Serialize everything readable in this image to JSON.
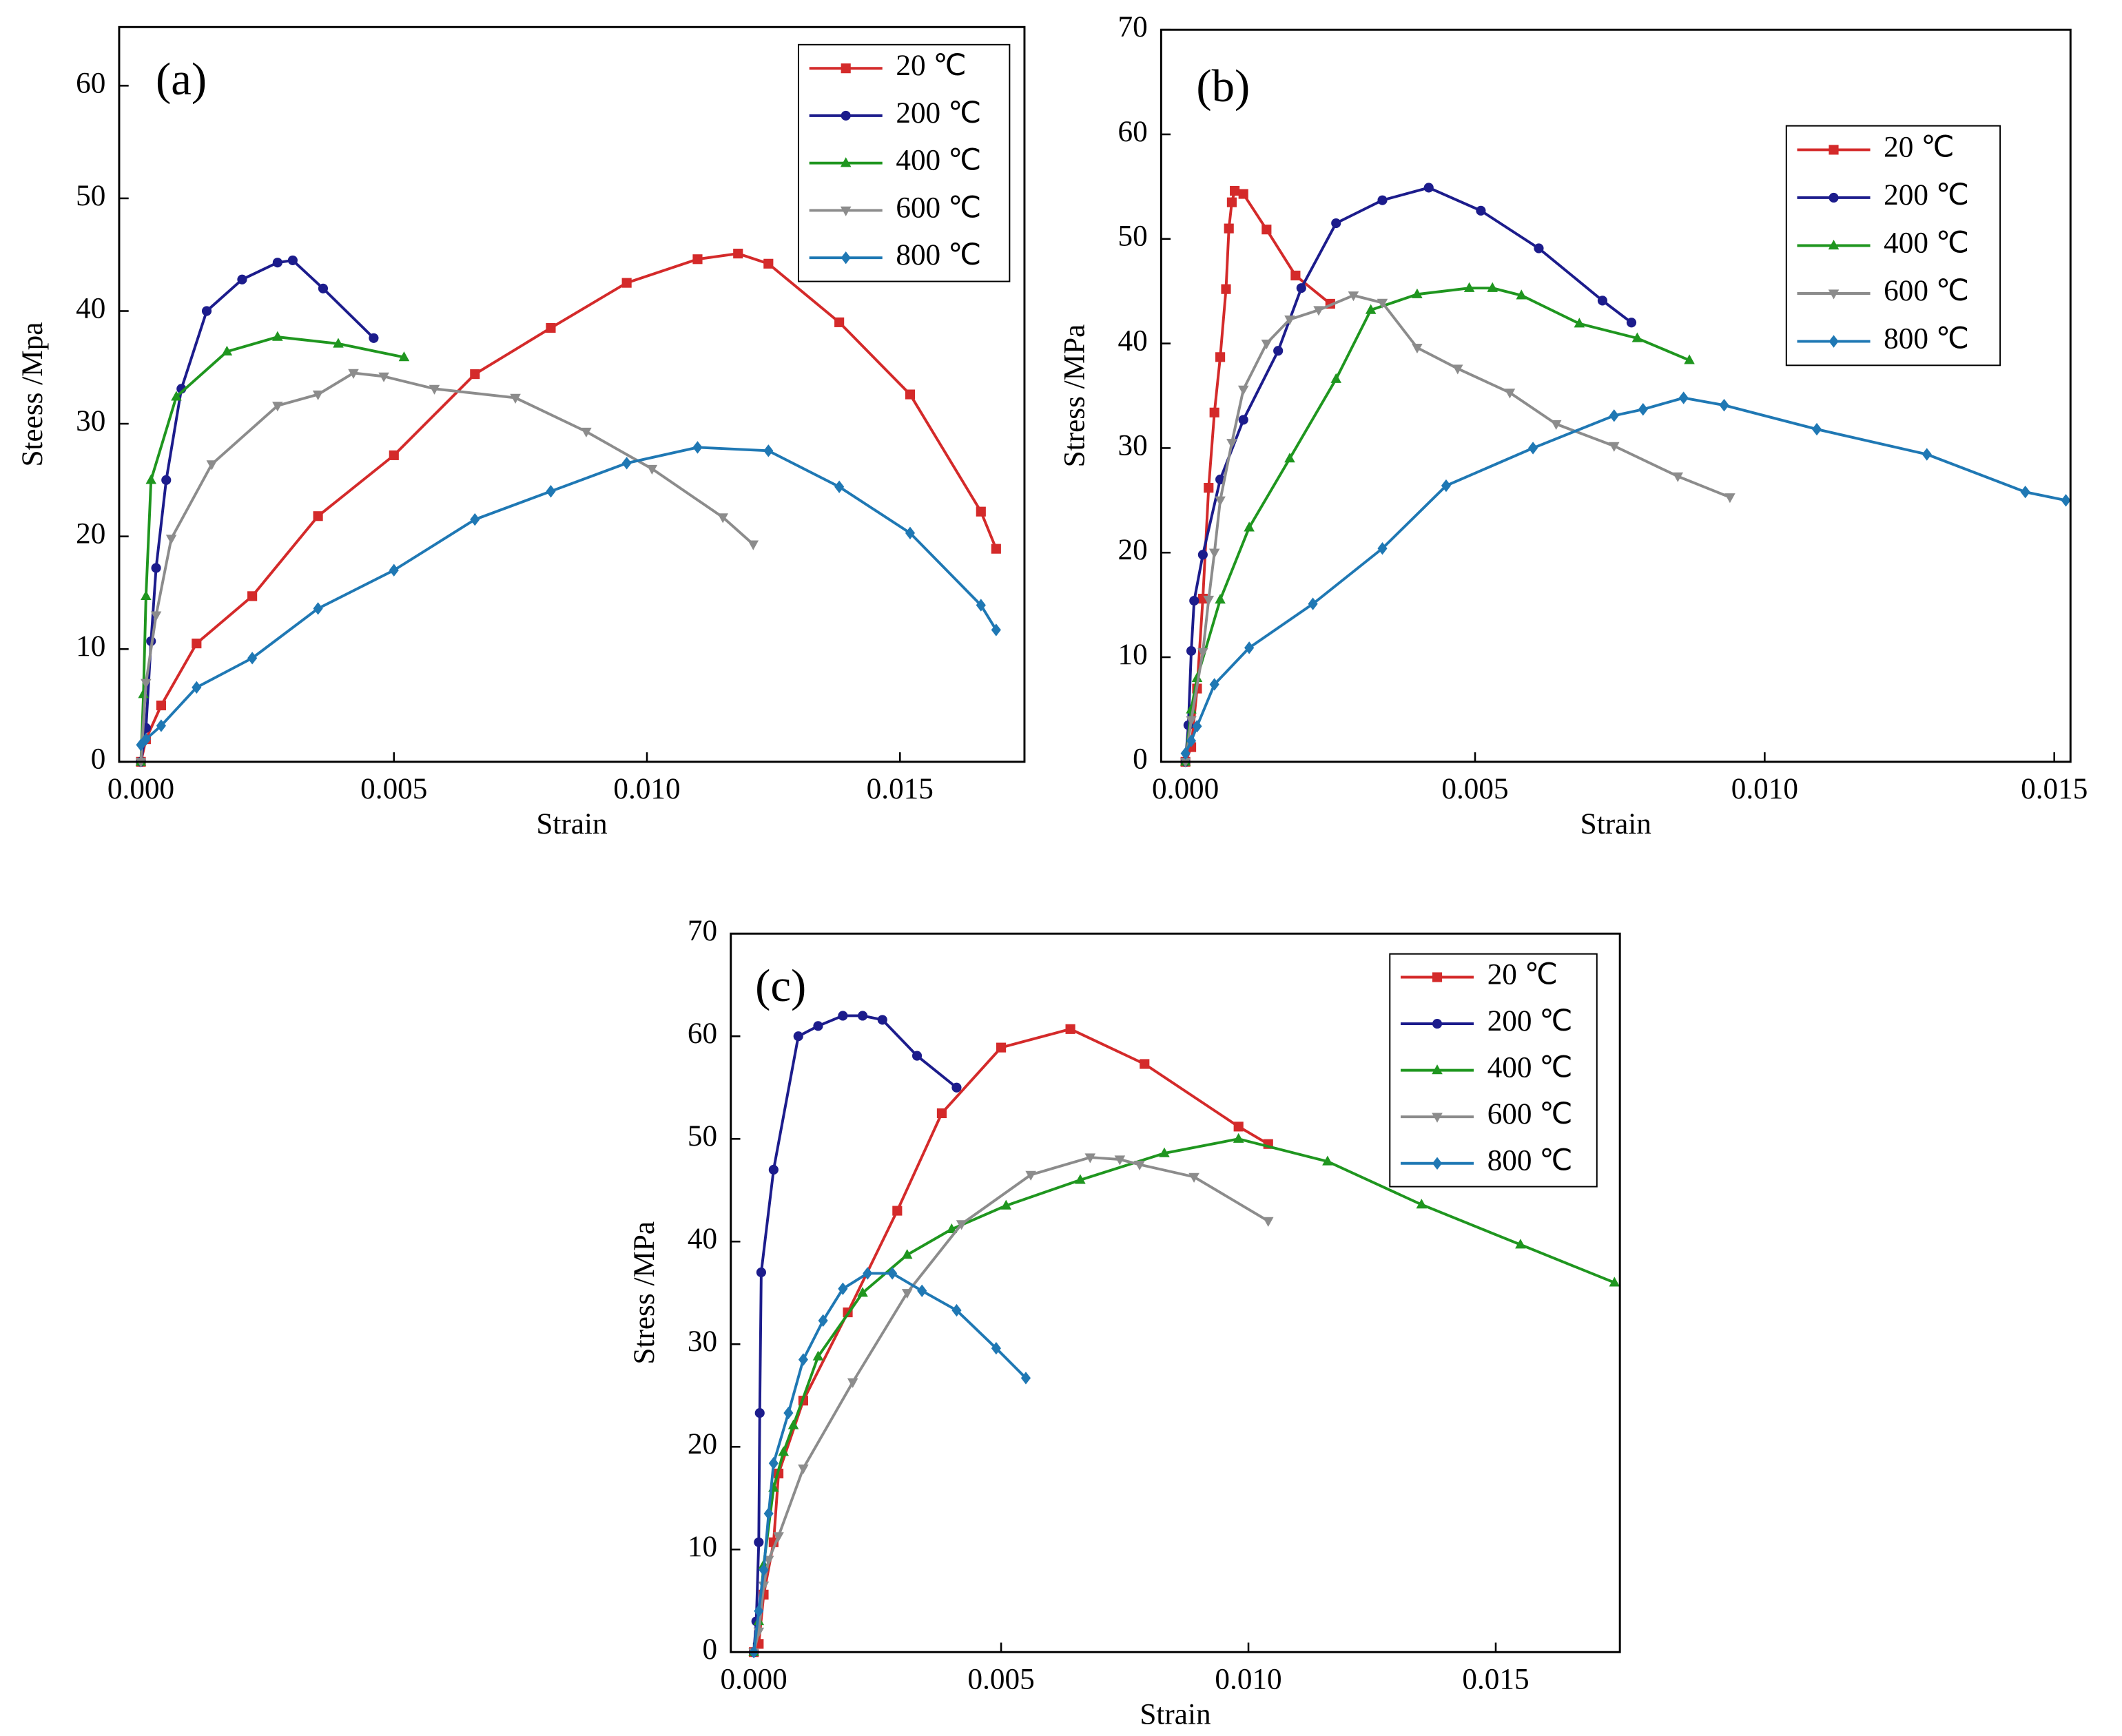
{
  "chart_data": [
    {
      "type": "line",
      "label": "(a)",
      "xlabel": "Strain",
      "ylabel": "Steess /Mpa",
      "xlim": [
        -0.00043,
        0.01746
      ],
      "ylim": [
        0,
        65.2
      ],
      "xticks": [
        {
          "value": 0,
          "label": "0.000"
        },
        {
          "value": 0.005,
          "label": "0.005"
        },
        {
          "value": 0.01,
          "label": "0.010"
        },
        {
          "value": 0.015,
          "label": "0.015"
        }
      ],
      "yticks": [
        0,
        10,
        20,
        30,
        40,
        50,
        60
      ],
      "legend": "upper right",
      "series": [
        {
          "name": "20 ℃",
          "color": "#d42a2a",
          "marker": "square",
          "x": [
            0,
            0.0001,
            0.0004,
            0.0011,
            0.0022,
            0.0035,
            0.005,
            0.0066,
            0.0081,
            0.0096,
            0.011,
            0.0118,
            0.0124,
            0.0138,
            0.0152,
            0.0166,
            0.0169
          ],
          "values": [
            0,
            2,
            5,
            10.5,
            14.7,
            21.8,
            27.2,
            34.4,
            38.5,
            42.5,
            44.6,
            45.1,
            44.2,
            39,
            32.6,
            22.2,
            18.9
          ]
        },
        {
          "name": "200 ℃",
          "color": "#1c1c8c",
          "marker": "circle",
          "x": [
            0,
            0.0001,
            0.0002,
            0.0003,
            0.0005,
            0.0008,
            0.0013,
            0.002,
            0.0027,
            0.003,
            0.0036,
            0.0046
          ],
          "values": [
            0,
            3,
            10.7,
            17.2,
            25,
            33.1,
            40,
            42.8,
            44.3,
            44.5,
            42,
            37.6
          ]
        },
        {
          "name": "400 ℃",
          "color": "#1f961f",
          "marker": "triangle-up",
          "x": [
            0,
            5e-05,
            0.0001,
            0.0002,
            0.0007,
            0.0017,
            0.0027,
            0.0039,
            0.0052
          ],
          "values": [
            0,
            6,
            14.7,
            25,
            32.4,
            36.4,
            37.7,
            37.1,
            35.9
          ]
        },
        {
          "name": "600 ℃",
          "color": "#8c8c8c",
          "marker": "triangle-down",
          "x": [
            0,
            0.0001,
            0.0003,
            0.0006,
            0.0014,
            0.0027,
            0.0035,
            0.0042,
            0.0048,
            0.0058,
            0.0074,
            0.0088,
            0.0101,
            0.0115,
            0.0121
          ],
          "values": [
            0,
            7,
            13,
            19.8,
            26.4,
            31.6,
            32.6,
            34.5,
            34.2,
            33.1,
            32.3,
            29.3,
            26,
            21.7,
            19.3
          ]
        },
        {
          "name": "800 ℃",
          "color": "#1f78b4",
          "marker": "diamond",
          "x": [
            0,
            0.0001,
            0.0004,
            0.0011,
            0.0022,
            0.0035,
            0.005,
            0.0066,
            0.0081,
            0.0096,
            0.011,
            0.0124,
            0.0138,
            0.0152,
            0.0166,
            0.0169
          ],
          "values": [
            1.5,
            2,
            3.2,
            6.6,
            9.2,
            13.6,
            17,
            21.5,
            24,
            26.5,
            27.9,
            27.6,
            24.4,
            20.3,
            13.9,
            11.7
          ]
        }
      ]
    },
    {
      "type": "line",
      "label": "(b)",
      "xlabel": "Strain",
      "ylabel": "Stress /MPa",
      "xlim": [
        -0.00042,
        0.01528
      ],
      "ylim": [
        0,
        70
      ],
      "xticks": [
        {
          "value": 0,
          "label": "0.000"
        },
        {
          "value": 0.005,
          "label": "0.005"
        },
        {
          "value": 0.01,
          "label": "0.010"
        },
        {
          "value": 0.015,
          "label": "0.015"
        }
      ],
      "yticks": [
        0,
        10,
        20,
        30,
        40,
        50,
        60,
        70
      ],
      "legend": "upper right",
      "series": [
        {
          "name": "20 ℃",
          "color": "#d42a2a",
          "marker": "square",
          "x": [
            0,
            0.0001,
            0.0002,
            0.0003,
            0.0004,
            0.0005,
            0.0006,
            0.0007,
            0.00075,
            0.0008,
            0.00085,
            0.001,
            0.0014,
            0.0019,
            0.0025
          ],
          "values": [
            0,
            1.4,
            7,
            15.6,
            26.2,
            33.4,
            38.7,
            45.2,
            51,
            53.5,
            54.6,
            54.3,
            50.9,
            46.5,
            43.8
          ]
        },
        {
          "name": "200 ℃",
          "color": "#1c1c8c",
          "marker": "circle",
          "x": [
            0,
            5e-05,
            0.0001,
            0.00015,
            0.0003,
            0.0006,
            0.001,
            0.0016,
            0.002,
            0.0026,
            0.0034,
            0.0042,
            0.0051,
            0.0061,
            0.0072,
            0.0077
          ],
          "values": [
            0,
            3.5,
            10.6,
            15.4,
            19.8,
            27,
            32.7,
            39.3,
            45.3,
            51.5,
            53.7,
            54.9,
            52.7,
            49.1,
            44.1,
            42
          ]
        },
        {
          "name": "400 ℃",
          "color": "#1f961f",
          "marker": "triangle-up",
          "x": [
            0,
            0.0001,
            0.0002,
            0.0006,
            0.0011,
            0.0018,
            0.0026,
            0.0032,
            0.004,
            0.0049,
            0.0053,
            0.0058,
            0.0068,
            0.0078,
            0.0087
          ],
          "values": [
            0,
            5,
            8,
            15.5,
            22.4,
            29,
            36.6,
            43.2,
            44.7,
            45.3,
            45.3,
            44.6,
            41.9,
            40.5,
            38.4
          ]
        },
        {
          "name": "600 ℃",
          "color": "#8c8c8c",
          "marker": "triangle-down",
          "x": [
            0,
            0.0001,
            0.0003,
            0.0004,
            0.0005,
            0.0006,
            0.0008,
            0.001,
            0.0014,
            0.0018,
            0.0023,
            0.0029,
            0.0034,
            0.004,
            0.0047,
            0.0056,
            0.0064,
            0.0074,
            0.0085,
            0.0094
          ],
          "values": [
            0,
            4,
            10.5,
            15.5,
            20,
            25,
            30.5,
            35.6,
            40,
            42.3,
            43.2,
            44.6,
            43.9,
            39.6,
            37.6,
            35.3,
            32.3,
            30.2,
            27.3,
            25.3
          ]
        },
        {
          "name": "800 ℃",
          "color": "#1f78b4",
          "marker": "diamond",
          "x": [
            0,
            0.0001,
            0.0002,
            0.0005,
            0.0011,
            0.0022,
            0.0034,
            0.0045,
            0.006,
            0.0074,
            0.0079,
            0.0086,
            0.0093,
            0.0109,
            0.0128,
            0.0145,
            0.0152
          ],
          "values": [
            0.8,
            2,
            3.4,
            7.4,
            10.9,
            15.1,
            20.4,
            26.4,
            30,
            33.1,
            33.7,
            34.8,
            34.1,
            31.8,
            29.4,
            25.8,
            25
          ]
        }
      ]
    },
    {
      "type": "line",
      "label": "(c)",
      "xlabel": "Strain",
      "ylabel": "Stress /MPa",
      "xlim": [
        -0.000465,
        0.01751
      ],
      "ylim": [
        0,
        70
      ],
      "xticks": [
        {
          "value": 0,
          "label": "0.000"
        },
        {
          "value": 0.005,
          "label": "0.005"
        },
        {
          "value": 0.01,
          "label": "0.010"
        },
        {
          "value": 0.015,
          "label": "0.015"
        }
      ],
      "yticks": [
        0,
        10,
        20,
        30,
        40,
        50,
        60,
        70
      ],
      "legend": "upper right",
      "series": [
        {
          "name": "20 ℃",
          "color": "#d42a2a",
          "marker": "square",
          "x": [
            0,
            0.0001,
            0.0002,
            0.0004,
            0.0005,
            0.001,
            0.0019,
            0.0029,
            0.0038,
            0.005,
            0.0064,
            0.0079,
            0.0098,
            0.0104
          ],
          "values": [
            0,
            0.8,
            5.6,
            10.7,
            17.4,
            24.5,
            33.1,
            43,
            52.5,
            58.9,
            60.7,
            57.3,
            51.2,
            49.5
          ]
        },
        {
          "name": "200 ℃",
          "color": "#1c1c8c",
          "marker": "circle",
          "x": [
            0,
            5e-05,
            0.0001,
            0.00012,
            0.00015,
            0.0004,
            0.0009,
            0.0013,
            0.0018,
            0.0022,
            0.0026,
            0.0033,
            0.0041
          ],
          "values": [
            0,
            3,
            10.7,
            23.3,
            37,
            47,
            60,
            61,
            62,
            62,
            61.6,
            58.1,
            55
          ]
        },
        {
          "name": "400 ℃",
          "color": "#1f961f",
          "marker": "triangle-up",
          "x": [
            0,
            0.0001,
            0.0002,
            0.0004,
            0.0006,
            0.0008,
            0.0013,
            0.0022,
            0.0031,
            0.004,
            0.0051,
            0.0066,
            0.0083,
            0.0098,
            0.0116,
            0.0135,
            0.0155,
            0.0174
          ],
          "values": [
            0,
            3,
            8.5,
            16,
            19.5,
            22.1,
            28.8,
            35,
            38.7,
            41.2,
            43.5,
            46,
            48.6,
            50,
            47.8,
            43.6,
            39.7,
            36
          ]
        },
        {
          "name": "600 ℃",
          "color": "#8c8c8c",
          "marker": "triangle-down",
          "x": [
            0,
            0.0001,
            0.0002,
            0.0003,
            0.0005,
            0.001,
            0.002,
            0.0031,
            0.0042,
            0.0056,
            0.0068,
            0.0074,
            0.0078,
            0.0089,
            0.0104
          ],
          "values": [
            0,
            2,
            6.5,
            9,
            11.3,
            17.9,
            26.3,
            35,
            41.7,
            46.5,
            48.2,
            48,
            47.5,
            46.3,
            42
          ]
        },
        {
          "name": "800 ℃",
          "color": "#1f78b4",
          "marker": "diamond",
          "x": [
            0,
            0.0001,
            0.0002,
            0.0003,
            0.0004,
            0.0007,
            0.001,
            0.0014,
            0.0018,
            0.0023,
            0.0028,
            0.0034,
            0.0041,
            0.0049,
            0.0055
          ],
          "values": [
            0,
            4,
            8,
            13.5,
            18.4,
            23.3,
            28.5,
            32.3,
            35.4,
            36.9,
            36.9,
            35.2,
            33.3,
            29.6,
            26.7
          ]
        }
      ]
    }
  ]
}
